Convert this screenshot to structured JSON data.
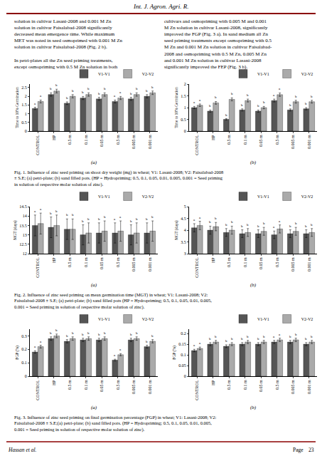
{
  "header": "Int. J. Agron. Agri. R.",
  "text_left": "solution in cultivar Lasani-2008 and 0.001 M Zn\nsolution in cultivar Faisalabad-2008 significantly\ndecreased mean emergence time. While maximum\nMET was noted in seed osmoprimed with 0.001 M Zn\nsolution in cultivar Faisalabad-2008 (Fig. 2 b).\n\nIn petri-plates all the Zn seed priming treatments,\nexcept osmopriming with 0.5 M Zn solution in both",
  "text_right": "cultivars and osmopriming with 0.005 M and 0.001\nM Zn solution in cultivar Lasani-2008, significantly\nimproved the FGP (Fig. 3 a). In sand medium all Zn\nseed priming treatments except osmopriming with 0.5\nM Zn and 0.001 M Zn solution in cultivar Faisalabad-\n2008 and osmopriming with 0.5 M Zn, 0.005 M Zn\nand 0.001 M Zn solution in cultivar Lasani-2008\nsignificantly improved the FEP (Fig. 3 b).",
  "footer_left": "Hassan et al.",
  "footer_right": "Page    23",
  "captions": [
    "Fig. 1. Influence of zinc seed priming on shoot dry weight (mg) in wheat; V1: Lasani-2008; V2: Faisalabad-2008\n± S.E; (a) petri-plate; (b) sand filled pots. (HP = Hydropriming; 0.5, 0.1, 0.05, 0.01, 0.005, 0.001 = Seed priming\nin solution of respective molar solution of zinc).",
    "Fig. 2. Influence of zinc seed priming on mean germination time (MGT) in wheat; V1: Lasani-2008; V2:\nFaisalabad-2008 ± S.E; (a) petri-plate; (b) sand filled pots (HP = Hydropriming; 0.5, 0.1, 0.05, 0.01, 0.005,\n0.001 = Seed priming in solution of respective molar solution of zinc).",
    "Fig. 3. Influence of zinc seed priming on final germination percentage (FGP) in wheat; V1: Lasani-2008; V2:\nFaisalabad-2008 ± S.E;(a) petri-plate; (b) sand filled pots. (HP = Hydropriming; 0.5, 0.1, 0.05, 0.01, 0.005,\n0.001 = Seed priming in solution of respective molar solution of zinc)."
  ],
  "chart_data": [
    {
      "type": "bar",
      "title": "(a)",
      "ylabel": "Time to 10% Germination",
      "categories": [
        "CONTROL",
        "HP",
        "0.5 m",
        "0.1 m",
        "0.05 m",
        "0.5 m",
        "0.005 m",
        "0.001 m"
      ],
      "series": [
        {
          "name": "V1-V1",
          "color": "#555555",
          "values": [
            1.3,
            2.1,
            1.6,
            1.9,
            1.85,
            1.7,
            1.85,
            2.0
          ],
          "error": [
            0.0655,
            0.0975,
            0.0775,
            0.0895,
            0.0875,
            0.0815,
            0.0875,
            0.0935
          ],
          "annotations": [
            "a",
            "b",
            "b",
            "b",
            "b",
            "a",
            "b",
            "b"
          ]
        },
        {
          "name": "V2-V2",
          "color": "#aaaaaa",
          "values": [
            1.7,
            2.3,
            2.0,
            2.1,
            2.1,
            1.9,
            2.1,
            2.2
          ],
          "error": [
            0.0815,
            0.1055,
            0.0935,
            0.0975,
            0.0975,
            0.0895,
            0.0975,
            0.1015
          ],
          "annotations": [
            "a",
            "b",
            "b",
            "b",
            "b",
            "a",
            "b",
            "b"
          ]
        }
      ],
      "ylim": [
        0,
        2.7
      ],
      "yticks": [
        0,
        0.5,
        1,
        1.5,
        2,
        2.5
      ],
      "grid": false,
      "legend": "upper right"
    },
    {
      "type": "bar",
      "title": "(b)",
      "ylabel": "Time to 10% Germination",
      "categories": [
        "CONTROL",
        "HP",
        "0.5 m",
        "0.1 m",
        "0.05 m",
        "0.5 m",
        "0.005 m",
        "0.001 m"
      ],
      "series": [
        {
          "name": "V1-V1",
          "color": "#555555",
          "values": [
            1.0,
            0.85,
            0.5,
            0.9,
            0.85,
            1.3,
            0.9,
            0.95
          ],
          "error": [
            0.05,
            0.044,
            0.03,
            0.046,
            0.044,
            0.062,
            0.046,
            0.048
          ],
          "annotations": [
            "a",
            "b",
            "b",
            "b",
            "b",
            "a",
            "b",
            "b"
          ]
        },
        {
          "name": "V2-V2",
          "color": "#aaaaaa",
          "values": [
            1.1,
            1.2,
            1.35,
            1.3,
            1.0,
            1.55,
            1.25,
            1.25
          ],
          "error": [
            0.054,
            0.058,
            0.064,
            0.062,
            0.05,
            0.072,
            0.06,
            0.06
          ],
          "annotations": [
            "a",
            "b",
            "b",
            "b",
            "b",
            "a",
            "b",
            "b"
          ]
        }
      ],
      "ylim": [
        0,
        2.0
      ],
      "yticks": [
        0,
        0.5,
        1,
        1.5,
        2
      ],
      "grid": false,
      "legend": "upper right"
    },
    {
      "type": "bar",
      "title": "(a)",
      "ylabel": "MGT (days)",
      "categories": [
        "CONTROL",
        "HP",
        "0.5 m",
        "0.1 m",
        "0.05 m",
        "0.5 m",
        "0.005 m",
        "0.001 m"
      ],
      "series": [
        {
          "name": "V1-V1",
          "color": "#555555",
          "values": [
            13.5,
            13.4,
            13.3,
            13.0,
            13.1,
            13.1,
            13.0,
            13.1
          ],
          "error": [
            0.5525,
            0.5485,
            0.5445,
            0.5325,
            0.5365,
            0.5365,
            0.5325,
            0.5365
          ],
          "annotations": [
            "a",
            "b",
            "b",
            "b",
            "b",
            "a",
            "b",
            "b"
          ]
        },
        {
          "name": "V2-V2",
          "color": "#aaaaaa",
          "values": [
            13.6,
            13.5,
            13.3,
            13.1,
            13.2,
            13.2,
            13.1,
            13.2
          ],
          "error": [
            0.5565,
            0.5525,
            0.5445,
            0.5365,
            0.5405,
            0.5405,
            0.5365,
            0.5405
          ],
          "annotations": [
            "a",
            "b",
            "b",
            "b",
            "b",
            "a",
            "b",
            "b"
          ]
        }
      ],
      "ylim": [
        12,
        14.5
      ],
      "yticks": [
        12,
        12.5,
        13,
        13.5,
        14,
        14.5
      ],
      "grid": false,
      "legend": "upper right"
    },
    {
      "type": "bar",
      "title": "(b)",
      "ylabel": "MGT (days)",
      "categories": [
        "CONTROL",
        "HP",
        "0.5 m",
        "0.1 m",
        "0.05 m",
        "0.5 m",
        "0.005 m",
        "0.001 m"
      ],
      "series": [
        {
          "name": "V1-V1",
          "color": "#555555",
          "values": [
            4.1,
            4.0,
            3.9,
            3.85,
            3.85,
            3.8,
            3.85,
            3.85
          ],
          "error": [
            0.174,
            0.17,
            0.166,
            0.164,
            0.164,
            0.162,
            0.164,
            0.164
          ],
          "annotations": [
            "a",
            "b",
            "b",
            "b",
            "b",
            "a",
            "b",
            "b"
          ]
        },
        {
          "name": "V2-V2",
          "color": "#aaaaaa",
          "values": [
            4.2,
            4.15,
            4.0,
            3.9,
            3.95,
            4.05,
            3.95,
            3.9
          ],
          "error": [
            0.178,
            0.176,
            0.17,
            0.166,
            0.168,
            0.172,
            0.168,
            0.166
          ],
          "annotations": [
            "a",
            "b",
            "b",
            "b",
            "b",
            "a",
            "b",
            "b"
          ]
        }
      ],
      "ylim": [
        3,
        5
      ],
      "yticks": [
        3,
        3.5,
        4,
        4.5,
        5
      ],
      "grid": false,
      "legend": "upper right"
    },
    {
      "type": "bar",
      "title": "(a)",
      "ylabel": "FGP (%)",
      "categories": [
        "CONTROL",
        "HP",
        "0.5 m",
        "0.1 m",
        "0.05 m",
        "0.5 m",
        "0.005 m",
        "0.001 m"
      ],
      "series": [
        {
          "name": "V1-V1",
          "color": "#555555",
          "values": [
            0.18,
            0.28,
            0.26,
            0.27,
            0.27,
            0.12,
            0.27,
            0.22
          ],
          "error": [
            0.00895,
            0.01295,
            0.01215,
            0.01255,
            0.01255,
            0.00655,
            0.01255,
            0.01055
          ],
          "annotations": [
            "a",
            "b",
            "b",
            "b",
            "b",
            "a",
            "b",
            "b"
          ]
        },
        {
          "name": "V2-V2",
          "color": "#aaaaaa",
          "values": [
            0.22,
            0.3,
            0.28,
            0.28,
            0.28,
            0.16,
            0.28,
            0.26
          ],
          "error": [
            0.01055,
            0.01375,
            0.01295,
            0.01295,
            0.01295,
            0.00815,
            0.01295,
            0.01215
          ],
          "annotations": [
            "a",
            "b",
            "b",
            "b",
            "b",
            "a",
            "b",
            "b"
          ]
        }
      ],
      "ylim": [
        0,
        0.35
      ],
      "yticks": [
        0,
        0.1,
        0.2,
        0.3
      ],
      "grid": false,
      "legend": "upper right"
    },
    {
      "type": "bar",
      "title": "(b)",
      "ylabel": "FGP (%)",
      "categories": [
        "CONTROL",
        "HP",
        "0.5 m",
        "0.1 m",
        "0.05 m",
        "0.5 m",
        "0.005 m",
        "0.001 m"
      ],
      "series": [
        {
          "name": "V1-V1",
          "color": "#555555",
          "values": [
            0.12,
            0.15,
            0.14,
            0.15,
            0.15,
            0.16,
            0.16,
            0.15
          ],
          "error": [
            0.0059,
            0.0071,
            0.0067,
            0.0071,
            0.0071,
            0.0075,
            0.0075,
            0.0071
          ],
          "annotations": [
            "a",
            "b",
            "b",
            "b",
            "b",
            "a",
            "b",
            "b"
          ]
        },
        {
          "name": "V2-V2",
          "color": "#aaaaaa",
          "values": [
            0.13,
            0.16,
            0.15,
            0.16,
            0.16,
            0.17,
            0.17,
            0.16
          ],
          "error": [
            0.0063,
            0.0075,
            0.0071,
            0.0075,
            0.0075,
            0.0079,
            0.0079,
            0.0075
          ],
          "annotations": [
            "a",
            "b",
            "b",
            "b",
            "b",
            "a",
            "b",
            "b"
          ]
        }
      ],
      "ylim": [
        0,
        0.22
      ],
      "yticks": [
        0,
        0.05,
        0.1,
        0.15,
        0.2
      ],
      "grid": false,
      "legend": "upper right"
    }
  ]
}
